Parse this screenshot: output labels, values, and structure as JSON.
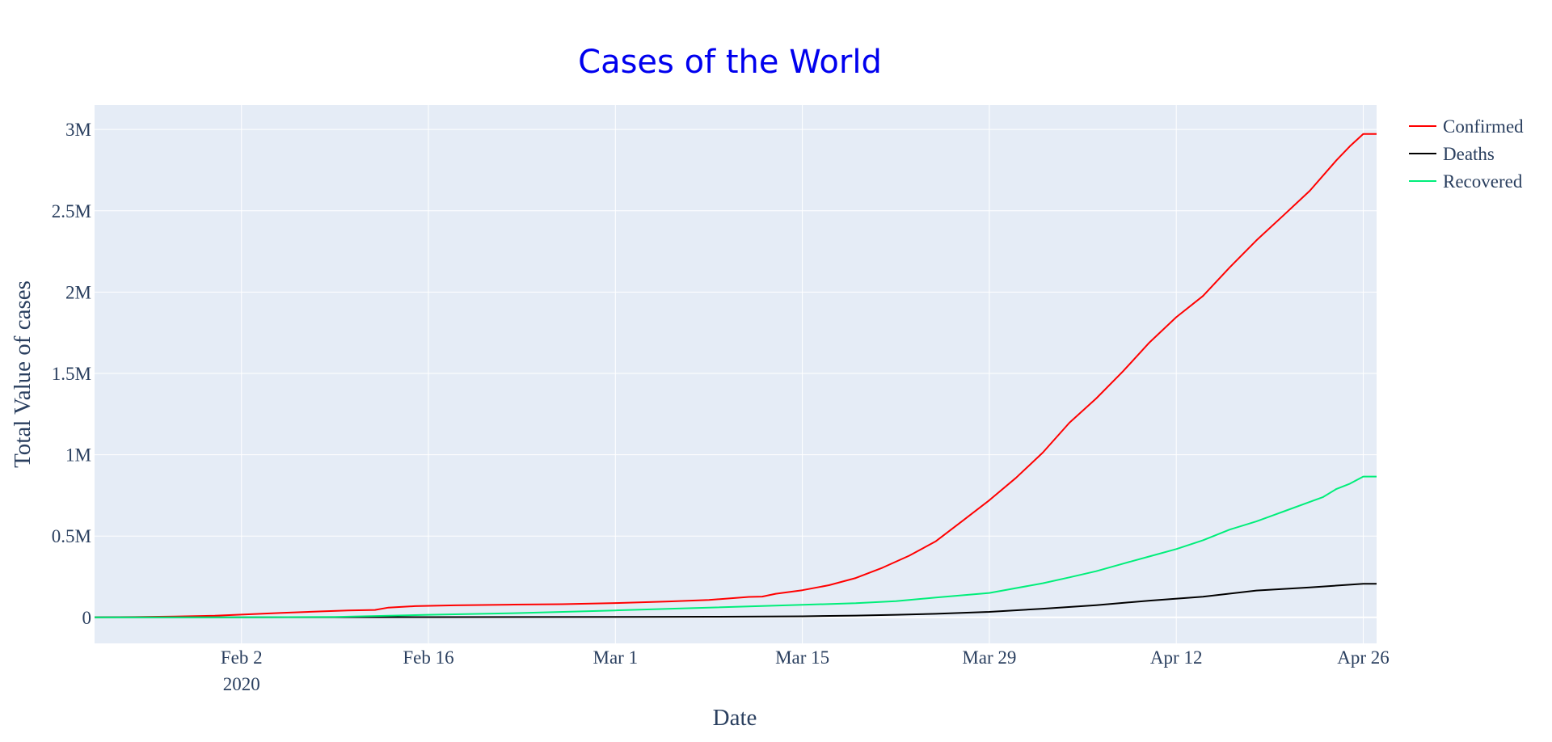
{
  "chart_data": {
    "type": "line",
    "title": "Cases of the World",
    "xlabel": "Date",
    "ylabel": "Total Value of cases",
    "colors": {
      "plot_background": "#e5ecf6",
      "grid": "#ffffff",
      "title": "#0000ee",
      "text": "#2a3f5f"
    },
    "x_range": [
      "2020-01-22",
      "2020-04-27"
    ],
    "ylim": [
      -160000,
      3150000
    ],
    "grid": true,
    "legend_position": "top-right",
    "x_ticks": [
      {
        "date": "2020-02-02",
        "label": "Feb 2",
        "sublabel": "2020"
      },
      {
        "date": "2020-02-16",
        "label": "Feb 16",
        "sublabel": ""
      },
      {
        "date": "2020-03-01",
        "label": "Mar 1",
        "sublabel": ""
      },
      {
        "date": "2020-03-15",
        "label": "Mar 15",
        "sublabel": ""
      },
      {
        "date": "2020-03-29",
        "label": "Mar 29",
        "sublabel": ""
      },
      {
        "date": "2020-04-12",
        "label": "Apr 12",
        "sublabel": ""
      },
      {
        "date": "2020-04-26",
        "label": "Apr 26",
        "sublabel": ""
      }
    ],
    "y_ticks": [
      {
        "value": 0,
        "label": "0"
      },
      {
        "value": 500000,
        "label": "0.5M"
      },
      {
        "value": 1000000,
        "label": "1M"
      },
      {
        "value": 1500000,
        "label": "1.5M"
      },
      {
        "value": 2000000,
        "label": "2M"
      },
      {
        "value": 2500000,
        "label": "2.5M"
      },
      {
        "value": 3000000,
        "label": "3M"
      }
    ],
    "series": [
      {
        "name": "Confirmed",
        "color": "#ff0000",
        "points": [
          [
            "2020-01-22",
            550
          ],
          [
            "2020-01-25",
            2000
          ],
          [
            "2020-01-28",
            5600
          ],
          [
            "2020-01-31",
            10000
          ],
          [
            "2020-02-02",
            17000
          ],
          [
            "2020-02-05",
            28000
          ],
          [
            "2020-02-08",
            37000
          ],
          [
            "2020-02-10",
            43000
          ],
          [
            "2020-02-12",
            46000
          ],
          [
            "2020-02-13",
            60000
          ],
          [
            "2020-02-15",
            69000
          ],
          [
            "2020-02-18",
            74000
          ],
          [
            "2020-02-22",
            78000
          ],
          [
            "2020-02-26",
            81000
          ],
          [
            "2020-03-01",
            88000
          ],
          [
            "2020-03-05",
            98000
          ],
          [
            "2020-03-08",
            107000
          ],
          [
            "2020-03-11",
            126000
          ],
          [
            "2020-03-12",
            128000
          ],
          [
            "2020-03-13",
            145000
          ],
          [
            "2020-03-15",
            167000
          ],
          [
            "2020-03-17",
            198000
          ],
          [
            "2020-03-19",
            242000
          ],
          [
            "2020-03-21",
            305000
          ],
          [
            "2020-03-23",
            379000
          ],
          [
            "2020-03-25",
            468000
          ],
          [
            "2020-03-27",
            594000
          ],
          [
            "2020-03-29",
            720000
          ],
          [
            "2020-03-31",
            858000
          ],
          [
            "2020-04-02",
            1013000
          ],
          [
            "2020-04-04",
            1197000
          ],
          [
            "2020-04-06",
            1346000
          ],
          [
            "2020-04-08",
            1512000
          ],
          [
            "2020-04-10",
            1691000
          ],
          [
            "2020-04-12",
            1846000
          ],
          [
            "2020-04-14",
            1976000
          ],
          [
            "2020-04-16",
            2152000
          ],
          [
            "2020-04-18",
            2318000
          ],
          [
            "2020-04-20",
            2470000
          ],
          [
            "2020-04-22",
            2623000
          ],
          [
            "2020-04-24",
            2811000
          ],
          [
            "2020-04-25",
            2897000
          ],
          [
            "2020-04-26",
            2972000
          ],
          [
            "2020-04-27",
            2972000
          ]
        ]
      },
      {
        "name": "Deaths",
        "color": "#000000",
        "points": [
          [
            "2020-01-22",
            17
          ],
          [
            "2020-02-02",
            360
          ],
          [
            "2020-02-16",
            1700
          ],
          [
            "2020-03-01",
            3000
          ],
          [
            "2020-03-08",
            3800
          ],
          [
            "2020-03-12",
            4900
          ],
          [
            "2020-03-15",
            6500
          ],
          [
            "2020-03-19",
            11000
          ],
          [
            "2020-03-22",
            16000
          ],
          [
            "2020-03-25",
            22000
          ],
          [
            "2020-03-29",
            34000
          ],
          [
            "2020-04-02",
            53000
          ],
          [
            "2020-04-06",
            75000
          ],
          [
            "2020-04-10",
            103000
          ],
          [
            "2020-04-14",
            127000
          ],
          [
            "2020-04-18",
            165000
          ],
          [
            "2020-04-22",
            184000
          ],
          [
            "2020-04-26",
            207000
          ],
          [
            "2020-04-27",
            207000
          ]
        ]
      },
      {
        "name": "Recovered",
        "color": "#00ee7a",
        "points": [
          [
            "2020-01-22",
            28
          ],
          [
            "2020-02-02",
            500
          ],
          [
            "2020-02-09",
            3200
          ],
          [
            "2020-02-16",
            16000
          ],
          [
            "2020-02-23",
            27000
          ],
          [
            "2020-03-01",
            43000
          ],
          [
            "2020-03-08",
            60000
          ],
          [
            "2020-03-15",
            77000
          ],
          [
            "2020-03-19",
            87000
          ],
          [
            "2020-03-22",
            100000
          ],
          [
            "2020-03-25",
            122000
          ],
          [
            "2020-03-29",
            150000
          ],
          [
            "2020-04-02",
            210000
          ],
          [
            "2020-04-04",
            246000
          ],
          [
            "2020-04-06",
            284000
          ],
          [
            "2020-04-08",
            330000
          ],
          [
            "2020-04-10",
            375000
          ],
          [
            "2020-04-12",
            420000
          ],
          [
            "2020-04-14",
            474000
          ],
          [
            "2020-04-16",
            540000
          ],
          [
            "2020-04-18",
            590000
          ],
          [
            "2020-04-20",
            650000
          ],
          [
            "2020-04-22",
            710000
          ],
          [
            "2020-04-23",
            740000
          ],
          [
            "2020-04-24",
            790000
          ],
          [
            "2020-04-25",
            822000
          ],
          [
            "2020-04-26",
            866000
          ],
          [
            "2020-04-27",
            866000
          ]
        ]
      }
    ]
  }
}
